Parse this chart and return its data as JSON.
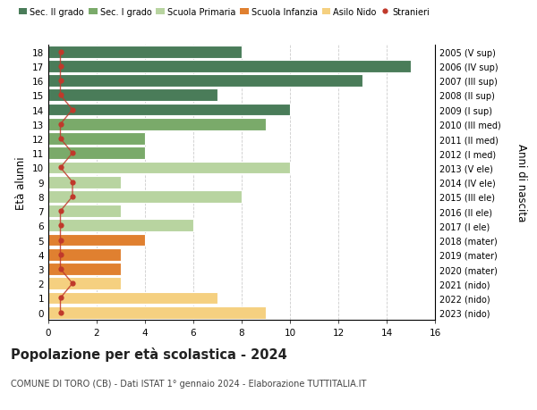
{
  "ages": [
    18,
    17,
    16,
    15,
    14,
    13,
    12,
    11,
    10,
    9,
    8,
    7,
    6,
    5,
    4,
    3,
    2,
    1,
    0
  ],
  "years": [
    "2005 (V sup)",
    "2006 (IV sup)",
    "2007 (III sup)",
    "2008 (II sup)",
    "2009 (I sup)",
    "2010 (III med)",
    "2011 (II med)",
    "2012 (I med)",
    "2013 (V ele)",
    "2014 (IV ele)",
    "2015 (III ele)",
    "2016 (II ele)",
    "2017 (I ele)",
    "2018 (mater)",
    "2019 (mater)",
    "2020 (mater)",
    "2021 (nido)",
    "2022 (nido)",
    "2023 (nido)"
  ],
  "values": [
    8,
    15,
    13,
    7,
    10,
    9,
    4,
    4,
    10,
    3,
    8,
    3,
    6,
    4,
    3,
    3,
    3,
    7,
    9
  ],
  "stranieri_values": [
    0.5,
    0.5,
    0.5,
    0.5,
    1.0,
    0.5,
    0.5,
    1.0,
    0.5,
    1.0,
    1.0,
    0.5,
    0.5,
    0.5,
    0.5,
    0.5,
    1.0,
    0.5,
    0.5
  ],
  "bar_colors": [
    "#4a7c59",
    "#4a7c59",
    "#4a7c59",
    "#4a7c59",
    "#4a7c59",
    "#7aaa6a",
    "#7aaa6a",
    "#7aaa6a",
    "#b8d4a0",
    "#b8d4a0",
    "#b8d4a0",
    "#b8d4a0",
    "#b8d4a0",
    "#e08030",
    "#e08030",
    "#e08030",
    "#f5d080",
    "#f5d080",
    "#f5d080"
  ],
  "color_sec2": "#4a7c59",
  "color_sec1": "#7aaa6a",
  "color_pri": "#b8d4a0",
  "color_inf": "#e08030",
  "color_nido": "#f5d080",
  "color_stranieri": "#c0392b",
  "xlim": [
    0,
    16
  ],
  "ylim": [
    -0.5,
    18.5
  ],
  "ylabel": "Età alunni",
  "ylabel_right": "Anni di nascita",
  "title": "Popolazione per età scolastica - 2024",
  "subtitle": "COMUNE DI TORO (CB) - Dati ISTAT 1° gennaio 2024 - Elaborazione TUTTITALIA.IT",
  "xticks": [
    0,
    2,
    4,
    6,
    8,
    10,
    12,
    14,
    16
  ],
  "bg_color": "#ffffff",
  "grid_color": "#cccccc",
  "bar_height": 0.85,
  "legend_labels": [
    "Sec. II grado",
    "Sec. I grado",
    "Scuola Primaria",
    "Scuola Infanzia",
    "Asilo Nido",
    "Stranieri"
  ]
}
